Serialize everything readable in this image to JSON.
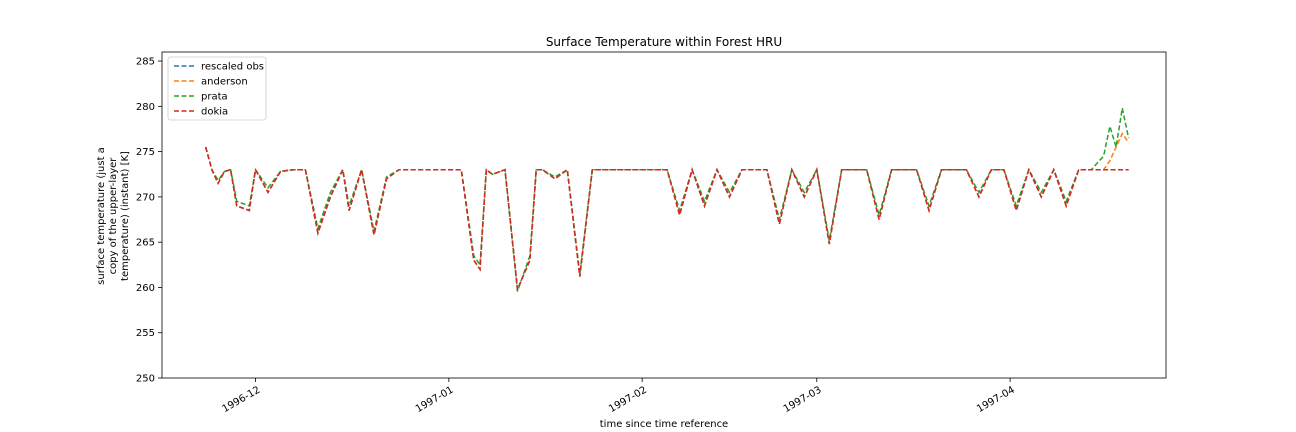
{
  "chart_data": {
    "type": "line",
    "title": "Surface Temperature within Forest HRU",
    "xlabel": "time since time reference",
    "ylabel_lines": [
      "surface temperature (just a",
      "copy of the upper-layer",
      "temperature) (instant) [K]"
    ],
    "ylim": [
      250,
      286
    ],
    "xlim": [
      "1996-11-16",
      "1997-04-26"
    ],
    "yticks": [
      250,
      255,
      260,
      265,
      270,
      275,
      280,
      285
    ],
    "xticks": [
      {
        "date": "1996-12-01",
        "label": "1996-12"
      },
      {
        "date": "1997-01-01",
        "label": "1997-01"
      },
      {
        "date": "1997-02-01",
        "label": "1997-02"
      },
      {
        "date": "1997-03-01",
        "label": "1997-03"
      },
      {
        "date": "1997-04-01",
        "label": "1997-04"
      }
    ],
    "grid": false,
    "legend_position": "top-left",
    "x": [
      "1996-11-23",
      "1996-11-24",
      "1996-11-25",
      "1996-11-26",
      "1996-11-27",
      "1996-11-28",
      "1996-11-30",
      "1996-12-01",
      "1996-12-03",
      "1996-12-05",
      "1996-12-07",
      "1996-12-09",
      "1996-12-11",
      "1996-12-13",
      "1996-12-15",
      "1996-12-16",
      "1996-12-18",
      "1996-12-20",
      "1996-12-22",
      "1996-12-24",
      "1996-12-26",
      "1996-12-28",
      "1996-12-30",
      "1997-01-01",
      "1997-01-03",
      "1997-01-05",
      "1997-01-06",
      "1997-01-07",
      "1997-01-08",
      "1997-01-10",
      "1997-01-12",
      "1997-01-14",
      "1997-01-15",
      "1997-01-16",
      "1997-01-18",
      "1997-01-20",
      "1997-01-22",
      "1997-01-24",
      "1997-01-25",
      "1997-01-26",
      "1997-01-27",
      "1997-01-28",
      "1997-01-30",
      "1997-02-01",
      "1997-02-03",
      "1997-02-05",
      "1997-02-07",
      "1997-02-09",
      "1997-02-11",
      "1997-02-13",
      "1997-02-15",
      "1997-02-17",
      "1997-02-19",
      "1997-02-21",
      "1997-02-23",
      "1997-02-25",
      "1997-02-27",
      "1997-03-01",
      "1997-03-03",
      "1997-03-05",
      "1997-03-07",
      "1997-03-09",
      "1997-03-11",
      "1997-03-13",
      "1997-03-15",
      "1997-03-17",
      "1997-03-19",
      "1997-03-21",
      "1997-03-23",
      "1997-03-25",
      "1997-03-27",
      "1997-03-29",
      "1997-03-31",
      "1997-04-02",
      "1997-04-04",
      "1997-04-06",
      "1997-04-08",
      "1997-04-10",
      "1997-04-12",
      "1997-04-14",
      "1997-04-16",
      "1997-04-17",
      "1997-04-18",
      "1997-04-19",
      "1997-04-20"
    ],
    "series": [
      {
        "name": "rescaled obs",
        "color": "#1f77b4",
        "values": [
          275.5,
          273.0,
          271.5,
          272.8,
          273.0,
          269.0,
          268.5,
          273.0,
          270.5,
          272.8,
          273.0,
          273.0,
          266.0,
          270.0,
          273.0,
          268.5,
          273.0,
          265.8,
          272.0,
          273.0,
          273.0,
          273.0,
          273.0,
          273.0,
          273.0,
          263.0,
          262.0,
          273.0,
          272.5,
          273.0,
          259.8,
          263.0,
          273.0,
          273.0,
          272.0,
          273.0,
          261.2,
          273.0,
          273.0,
          273.0,
          273.0,
          273.0,
          273.0,
          273.0,
          273.0,
          273.0,
          268.0,
          273.0,
          269.0,
          273.0,
          270.0,
          273.0,
          273.0,
          273.0,
          267.0,
          273.0,
          270.0,
          273.0,
          264.8,
          273.0,
          273.0,
          273.0,
          267.5,
          273.0,
          273.0,
          273.0,
          268.5,
          273.0,
          273.0,
          273.0,
          270.0,
          273.0,
          273.0,
          268.5,
          273.0,
          270.0,
          273.0,
          269.0,
          273.0,
          273.0,
          273.0,
          273.0,
          273.0,
          273.0,
          273.0
        ]
      },
      {
        "name": "anderson",
        "color": "#ff7f0e",
        "values": [
          275.5,
          273.0,
          271.5,
          272.8,
          273.0,
          269.0,
          268.5,
          273.0,
          270.5,
          272.8,
          273.0,
          273.0,
          266.0,
          270.0,
          273.0,
          268.5,
          273.0,
          265.8,
          272.0,
          273.0,
          273.0,
          273.0,
          273.0,
          273.0,
          273.0,
          263.0,
          262.0,
          273.0,
          272.5,
          273.0,
          259.8,
          263.0,
          273.0,
          273.0,
          272.0,
          273.0,
          261.2,
          273.0,
          273.0,
          273.0,
          273.0,
          273.0,
          273.0,
          273.0,
          273.0,
          273.0,
          268.0,
          273.0,
          269.0,
          273.0,
          270.0,
          273.0,
          273.0,
          273.0,
          267.0,
          273.0,
          270.0,
          273.0,
          264.8,
          273.0,
          273.0,
          273.0,
          267.5,
          273.0,
          273.0,
          273.0,
          268.5,
          273.0,
          273.0,
          273.0,
          270.0,
          273.0,
          273.0,
          268.5,
          273.0,
          270.0,
          273.0,
          269.0,
          273.0,
          273.0,
          273.0,
          274.0,
          275.5,
          277.0,
          276.0
        ]
      },
      {
        "name": "prata",
        "color": "#2ca02c",
        "values": [
          275.5,
          273.0,
          271.8,
          272.8,
          273.0,
          269.5,
          269.0,
          273.0,
          271.0,
          272.8,
          273.0,
          273.0,
          266.5,
          270.5,
          273.0,
          269.0,
          273.0,
          266.2,
          272.2,
          273.0,
          273.0,
          273.0,
          273.0,
          273.0,
          273.0,
          263.5,
          262.5,
          273.0,
          272.5,
          273.0,
          259.6,
          263.5,
          273.0,
          273.0,
          272.2,
          273.0,
          261.5,
          273.0,
          273.0,
          273.0,
          273.0,
          273.0,
          273.0,
          273.0,
          273.0,
          273.0,
          268.5,
          273.0,
          269.5,
          273.0,
          270.5,
          273.0,
          273.0,
          273.0,
          267.5,
          273.0,
          270.5,
          273.0,
          265.2,
          273.0,
          273.0,
          273.0,
          268.0,
          273.0,
          273.0,
          273.0,
          269.0,
          273.0,
          273.0,
          273.0,
          270.5,
          273.0,
          273.0,
          269.0,
          273.0,
          270.5,
          273.0,
          269.5,
          273.0,
          273.0,
          274.5,
          277.8,
          275.5,
          279.8,
          276.5
        ]
      },
      {
        "name": "dokia",
        "color": "#d62728",
        "values": [
          275.5,
          273.0,
          271.5,
          272.8,
          273.0,
          269.0,
          268.5,
          273.0,
          270.5,
          272.8,
          273.0,
          273.0,
          266.0,
          270.0,
          273.0,
          268.5,
          273.0,
          265.8,
          272.0,
          273.0,
          273.0,
          273.0,
          273.0,
          273.0,
          273.0,
          263.0,
          262.0,
          273.0,
          272.5,
          273.0,
          259.8,
          263.0,
          273.0,
          273.0,
          272.0,
          273.0,
          261.2,
          273.0,
          273.0,
          273.0,
          273.0,
          273.0,
          273.0,
          273.0,
          273.0,
          273.0,
          268.0,
          273.0,
          269.0,
          273.0,
          270.0,
          273.0,
          273.0,
          273.0,
          267.0,
          273.0,
          270.0,
          273.0,
          264.8,
          273.0,
          273.0,
          273.0,
          267.5,
          273.0,
          273.0,
          273.0,
          268.5,
          273.0,
          273.0,
          273.0,
          270.0,
          273.0,
          273.0,
          268.5,
          273.0,
          270.0,
          273.0,
          269.0,
          273.0,
          273.0,
          273.0,
          273.0,
          273.0,
          273.0,
          273.0
        ]
      }
    ]
  }
}
